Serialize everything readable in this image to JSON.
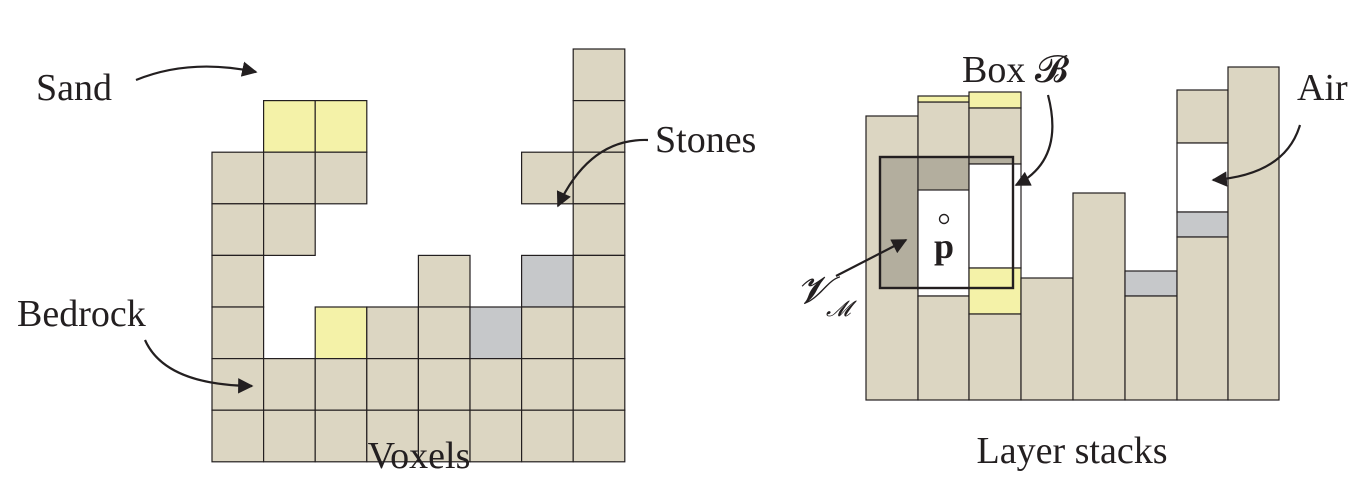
{
  "colors": {
    "bedrock": "#dcd6c2",
    "sand": "#f4f2a8",
    "stone": "#c6c8ca",
    "air": "#ffffff",
    "outline": "#231f20",
    "box_overlay": "#231f20"
  },
  "voxels": {
    "caption": "Voxels",
    "labels": {
      "sand": "Sand",
      "stones": "Stones",
      "bedrock": "Bedrock"
    },
    "grid_note_rows_top_to_bottom": [
      [
        "",
        "",
        "",
        "",
        "",
        "",
        "",
        "B"
      ],
      [
        "",
        "S",
        "S",
        "",
        "",
        "",
        "",
        "B"
      ],
      [
        "B",
        "B",
        "B",
        "",
        "",
        "",
        "B",
        "B"
      ],
      [
        "B",
        "B",
        "",
        "",
        "",
        "",
        "",
        "B"
      ],
      [
        "B",
        "",
        "",
        "",
        "B",
        "",
        "St",
        "B"
      ],
      [
        "B",
        "",
        "S",
        "B",
        "B",
        "St",
        "B",
        "B"
      ],
      [
        "B",
        "B",
        "B",
        "B",
        "B",
        "B",
        "B",
        "B"
      ],
      [
        "B",
        "B",
        "B",
        "B",
        "B",
        "B",
        "B",
        "B"
      ]
    ]
  },
  "layer_stacks": {
    "caption": "Layer stacks",
    "labels": {
      "box": "Box 𝓑",
      "air": "Air",
      "point": "p",
      "volume": "𝓥",
      "volume_sub": "𝓜"
    }
  }
}
